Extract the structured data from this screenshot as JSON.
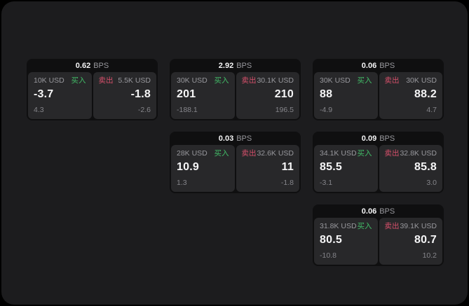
{
  "labels": {
    "bps_suffix": "BPS",
    "buy": "买入",
    "sell": "卖出"
  },
  "colors": {
    "buy_green": "#42bd68",
    "sell_red": "#d7506b",
    "panel_bg": "#1c1c1e",
    "card_bg": "#0f0f10",
    "subcard_bg": "#28282a"
  },
  "cards": [
    {
      "row": 1,
      "col": 1,
      "bps": "0.62",
      "buy": {
        "amount": "10K USD",
        "value": "-3.7",
        "delta": "4.3"
      },
      "sell": {
        "amount": "5.5K USD",
        "value": "-1.8",
        "delta": "-2.6"
      }
    },
    {
      "row": 1,
      "col": 2,
      "bps": "2.92",
      "buy": {
        "amount": "30K USD",
        "value": "201",
        "delta": "-188.1"
      },
      "sell": {
        "amount": "30.1K USD",
        "value": "210",
        "delta": "196.5"
      }
    },
    {
      "row": 1,
      "col": 3,
      "bps": "0.06",
      "buy": {
        "amount": "30K USD",
        "value": "88",
        "delta": "-4.9"
      },
      "sell": {
        "amount": "30K USD",
        "value": "88.2",
        "delta": "4.7"
      }
    },
    {
      "row": 2,
      "col": 2,
      "bps": "0.03",
      "buy": {
        "amount": "28K USD",
        "value": "10.9",
        "delta": "1.3"
      },
      "sell": {
        "amount": "32.6K USD",
        "value": "11",
        "delta": "-1.8"
      }
    },
    {
      "row": 2,
      "col": 3,
      "bps": "0.09",
      "buy": {
        "amount": "34.1K USD",
        "value": "85.5",
        "delta": "-3.1"
      },
      "sell": {
        "amount": "32.8K USD",
        "value": "85.8",
        "delta": "3.0"
      }
    },
    {
      "row": 3,
      "col": 3,
      "bps": "0.06",
      "buy": {
        "amount": "31.8K USD",
        "value": "80.5",
        "delta": "-10.8"
      },
      "sell": {
        "amount": "39.1K USD",
        "value": "80.7",
        "delta": "10.2"
      }
    }
  ]
}
